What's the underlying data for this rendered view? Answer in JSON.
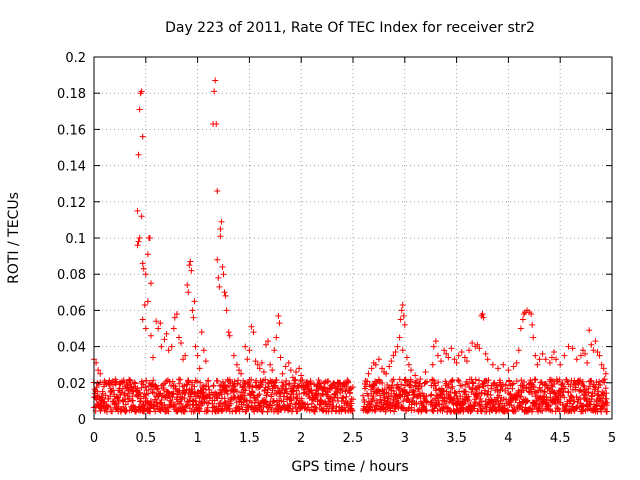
{
  "chart_data": {
    "type": "scatter",
    "title": "Day 223 of 2011, Rate Of TEC Index for receiver str2",
    "xlabel": "GPS time / hours",
    "ylabel": "ROTI / TECUs",
    "xlim": [
      0,
      5
    ],
    "ylim": [
      0,
      0.2
    ],
    "xticks": [
      0,
      0.5,
      1,
      1.5,
      2,
      2.5,
      3,
      3.5,
      4,
      4.5,
      5
    ],
    "xtick_labels": [
      "0",
      "0.5",
      "1",
      "1.5",
      "2",
      "2.5",
      "3",
      "3.5",
      "4",
      "4.5",
      "5"
    ],
    "yticks": [
      0,
      0.02,
      0.04,
      0.06,
      0.08,
      0.1,
      0.12,
      0.14,
      0.16,
      0.18,
      0.2
    ],
    "ytick_labels": [
      "0",
      "0.02",
      "0.04",
      "0.06",
      "0.08",
      "0.1",
      "0.12",
      "0.14",
      "0.16",
      "0.18",
      "0.2"
    ],
    "grid": true,
    "marker": "+",
    "marker_color": "#ff0000",
    "series": [
      {
        "name": "ROTI",
        "points": [
          [
            0.0,
            0.033
          ],
          [
            0.02,
            0.031
          ],
          [
            0.04,
            0.027
          ],
          [
            0.06,
            0.025
          ],
          [
            0.1,
            0.021
          ],
          [
            0.15,
            0.019
          ],
          [
            0.2,
            0.02
          ],
          [
            0.25,
            0.019
          ],
          [
            0.3,
            0.018
          ],
          [
            0.35,
            0.021
          ],
          [
            0.4,
            0.017
          ],
          [
            0.42,
            0.115
          ],
          [
            0.43,
            0.098
          ],
          [
            0.44,
            0.1
          ],
          [
            0.42,
            0.096
          ],
          [
            0.43,
            0.146
          ],
          [
            0.44,
            0.171
          ],
          [
            0.45,
            0.18
          ],
          [
            0.46,
            0.181
          ],
          [
            0.47,
            0.156
          ],
          [
            0.46,
            0.112
          ],
          [
            0.47,
            0.086
          ],
          [
            0.48,
            0.083
          ],
          [
            0.5,
            0.08
          ],
          [
            0.52,
            0.091
          ],
          [
            0.53,
            0.1
          ],
          [
            0.54,
            0.1
          ],
          [
            0.55,
            0.075
          ],
          [
            0.49,
            0.063
          ],
          [
            0.52,
            0.065
          ],
          [
            0.47,
            0.055
          ],
          [
            0.5,
            0.05
          ],
          [
            0.55,
            0.046
          ],
          [
            0.57,
            0.034
          ],
          [
            0.6,
            0.054
          ],
          [
            0.62,
            0.05
          ],
          [
            0.64,
            0.053
          ],
          [
            0.65,
            0.04
          ],
          [
            0.68,
            0.044
          ],
          [
            0.7,
            0.047
          ],
          [
            0.72,
            0.038
          ],
          [
            0.75,
            0.04
          ],
          [
            0.77,
            0.05
          ],
          [
            0.78,
            0.056
          ],
          [
            0.8,
            0.058
          ],
          [
            0.82,
            0.045
          ],
          [
            0.84,
            0.042
          ],
          [
            0.86,
            0.033
          ],
          [
            0.88,
            0.035
          ],
          [
            0.9,
            0.074
          ],
          [
            0.91,
            0.07
          ],
          [
            0.92,
            0.085
          ],
          [
            0.93,
            0.087
          ],
          [
            0.94,
            0.082
          ],
          [
            0.95,
            0.06
          ],
          [
            0.96,
            0.056
          ],
          [
            0.97,
            0.065
          ],
          [
            0.98,
            0.04
          ],
          [
            1.0,
            0.035
          ],
          [
            1.02,
            0.028
          ],
          [
            1.04,
            0.048
          ],
          [
            1.06,
            0.038
          ],
          [
            1.08,
            0.032
          ],
          [
            1.1,
            0.021
          ],
          [
            1.15,
            0.163
          ],
          [
            1.16,
            0.181
          ],
          [
            1.17,
            0.187
          ],
          [
            1.18,
            0.163
          ],
          [
            1.19,
            0.126
          ],
          [
            1.19,
            0.088
          ],
          [
            1.2,
            0.078
          ],
          [
            1.21,
            0.073
          ],
          [
            1.22,
            0.105
          ],
          [
            1.23,
            0.109
          ],
          [
            1.22,
            0.101
          ],
          [
            1.24,
            0.084
          ],
          [
            1.25,
            0.08
          ],
          [
            1.26,
            0.07
          ],
          [
            1.27,
            0.068
          ],
          [
            1.28,
            0.06
          ],
          [
            1.3,
            0.048
          ],
          [
            1.31,
            0.046
          ],
          [
            1.35,
            0.035
          ],
          [
            1.38,
            0.03
          ],
          [
            1.4,
            0.027
          ],
          [
            1.42,
            0.025
          ],
          [
            1.44,
            0.021
          ],
          [
            1.46,
            0.04
          ],
          [
            1.48,
            0.033
          ],
          [
            1.5,
            0.038
          ],
          [
            1.52,
            0.051
          ],
          [
            1.54,
            0.048
          ],
          [
            1.56,
            0.032
          ],
          [
            1.58,
            0.03
          ],
          [
            1.6,
            0.028
          ],
          [
            1.62,
            0.031
          ],
          [
            1.64,
            0.026
          ],
          [
            1.66,
            0.041
          ],
          [
            1.68,
            0.043
          ],
          [
            1.7,
            0.03
          ],
          [
            1.72,
            0.027
          ],
          [
            1.74,
            0.038
          ],
          [
            1.76,
            0.045
          ],
          [
            1.78,
            0.057
          ],
          [
            1.79,
            0.053
          ],
          [
            1.8,
            0.034
          ],
          [
            1.82,
            0.025
          ],
          [
            1.85,
            0.029
          ],
          [
            1.88,
            0.031
          ],
          [
            1.9,
            0.027
          ],
          [
            1.92,
            0.023
          ],
          [
            1.95,
            0.026
          ],
          [
            1.98,
            0.028
          ],
          [
            2.0,
            0.024
          ],
          [
            2.05,
            0.02
          ],
          [
            2.1,
            0.016
          ],
          [
            2.15,
            0.018
          ],
          [
            2.2,
            0.017
          ],
          [
            2.25,
            0.015
          ],
          [
            2.3,
            0.019
          ],
          [
            2.35,
            0.016
          ],
          [
            2.4,
            0.018
          ],
          [
            2.45,
            0.02
          ],
          [
            2.48,
            0.017
          ],
          [
            2.62,
            0.021
          ],
          [
            2.65,
            0.025
          ],
          [
            2.68,
            0.028
          ],
          [
            2.7,
            0.031
          ],
          [
            2.72,
            0.03
          ],
          [
            2.75,
            0.033
          ],
          [
            2.78,
            0.028
          ],
          [
            2.8,
            0.026
          ],
          [
            2.82,
            0.025
          ],
          [
            2.85,
            0.029
          ],
          [
            2.87,
            0.032
          ],
          [
            2.89,
            0.035
          ],
          [
            2.91,
            0.037
          ],
          [
            2.93,
            0.04
          ],
          [
            2.95,
            0.045
          ],
          [
            2.96,
            0.055
          ],
          [
            2.97,
            0.06
          ],
          [
            2.98,
            0.063
          ],
          [
            2.99,
            0.057
          ],
          [
            3.0,
            0.052
          ],
          [
            2.98,
            0.038
          ],
          [
            3.02,
            0.034
          ],
          [
            3.04,
            0.03
          ],
          [
            3.06,
            0.027
          ],
          [
            3.1,
            0.024
          ],
          [
            3.15,
            0.022
          ],
          [
            3.2,
            0.026
          ],
          [
            3.27,
            0.03
          ],
          [
            3.28,
            0.04
          ],
          [
            3.3,
            0.043
          ],
          [
            3.32,
            0.035
          ],
          [
            3.35,
            0.032
          ],
          [
            3.38,
            0.038
          ],
          [
            3.4,
            0.036
          ],
          [
            3.42,
            0.034
          ],
          [
            3.45,
            0.039
          ],
          [
            3.48,
            0.033
          ],
          [
            3.5,
            0.031
          ],
          [
            3.52,
            0.035
          ],
          [
            3.55,
            0.037
          ],
          [
            3.58,
            0.034
          ],
          [
            3.6,
            0.032
          ],
          [
            3.62,
            0.038
          ],
          [
            3.65,
            0.042
          ],
          [
            3.68,
            0.04
          ],
          [
            3.7,
            0.041
          ],
          [
            3.72,
            0.039
          ],
          [
            3.74,
            0.057
          ],
          [
            3.75,
            0.058
          ],
          [
            3.76,
            0.056
          ],
          [
            3.78,
            0.036
          ],
          [
            3.8,
            0.033
          ],
          [
            3.85,
            0.03
          ],
          [
            3.9,
            0.028
          ],
          [
            3.95,
            0.03
          ],
          [
            4.0,
            0.027
          ],
          [
            4.05,
            0.029
          ],
          [
            4.08,
            0.031
          ],
          [
            4.1,
            0.038
          ],
          [
            4.12,
            0.05
          ],
          [
            4.14,
            0.055
          ],
          [
            4.15,
            0.058
          ],
          [
            4.16,
            0.059
          ],
          [
            4.18,
            0.06
          ],
          [
            4.2,
            0.059
          ],
          [
            4.22,
            0.058
          ],
          [
            4.23,
            0.052
          ],
          [
            4.24,
            0.045
          ],
          [
            4.26,
            0.035
          ],
          [
            4.28,
            0.03
          ],
          [
            4.3,
            0.033
          ],
          [
            4.33,
            0.036
          ],
          [
            4.36,
            0.033
          ],
          [
            4.4,
            0.031
          ],
          [
            4.42,
            0.034
          ],
          [
            4.44,
            0.037
          ],
          [
            4.46,
            0.033
          ],
          [
            4.5,
            0.03
          ],
          [
            4.54,
            0.035
          ],
          [
            4.58,
            0.04
          ],
          [
            4.62,
            0.039
          ],
          [
            4.66,
            0.033
          ],
          [
            4.7,
            0.035
          ],
          [
            4.72,
            0.038
          ],
          [
            4.74,
            0.036
          ],
          [
            4.76,
            0.031
          ],
          [
            4.78,
            0.049
          ],
          [
            4.8,
            0.041
          ],
          [
            4.82,
            0.038
          ],
          [
            4.84,
            0.043
          ],
          [
            4.86,
            0.037
          ],
          [
            4.88,
            0.035
          ],
          [
            4.9,
            0.03
          ],
          [
            4.92,
            0.028
          ],
          [
            4.94,
            0.025
          ]
        ],
        "band_segments": [
          [
            0.0,
            1.12
          ],
          [
            1.14,
            2.5
          ],
          [
            2.6,
            3.22
          ],
          [
            3.25,
            4.96
          ]
        ],
        "band_range": [
          0.004,
          0.022
        ]
      }
    ]
  }
}
